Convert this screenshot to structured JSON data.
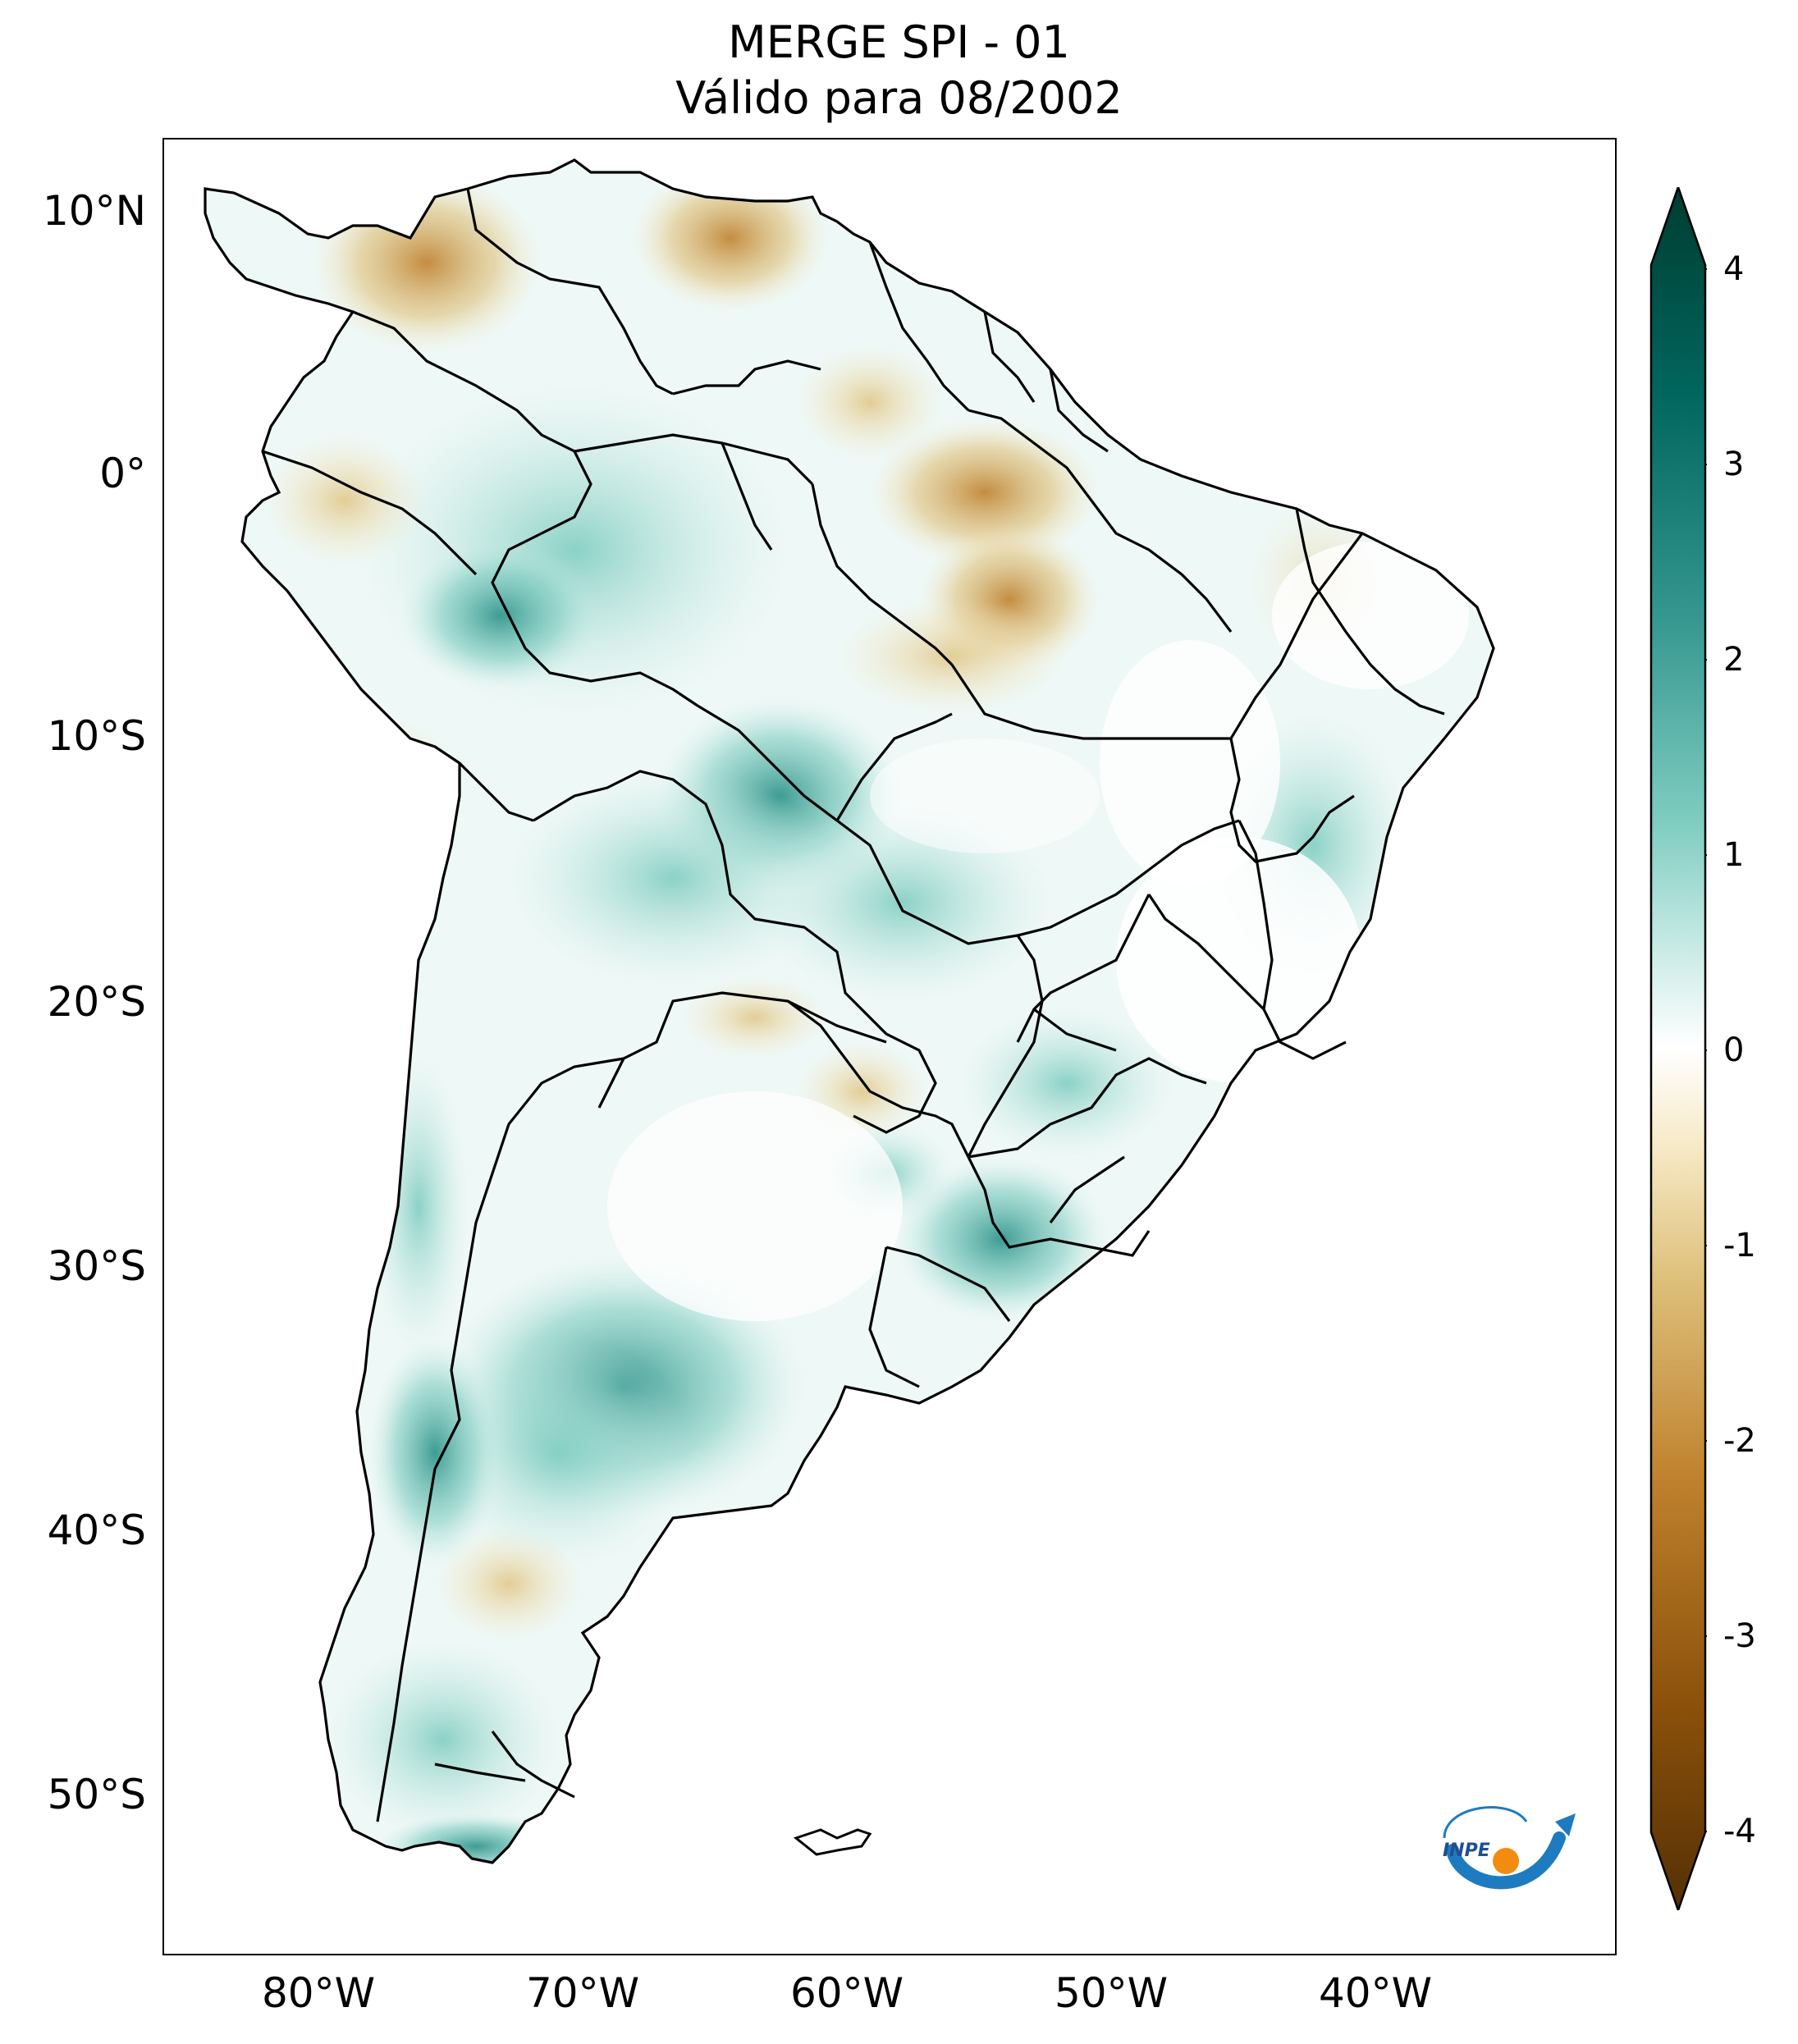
{
  "title": {
    "line1": "MERGE   SPI - 01",
    "line2": "Válido para 08/2002"
  },
  "axes": {
    "lat_labels": [
      "10°N",
      "0°",
      "10°S",
      "20°S",
      "30°S",
      "40°S",
      "50°S"
    ],
    "lon_labels": [
      "80°W",
      "70°W",
      "60°W",
      "50°W",
      "40°W"
    ]
  },
  "colorbar": {
    "min": -4,
    "max": 4,
    "labels": [
      "4",
      "3",
      "2",
      "1",
      "0",
      "-1",
      "-2",
      "-3",
      "-4"
    ],
    "colors": {
      "dry_extreme": "#543005",
      "dry_strong": "#8c510a",
      "dry_moderate": "#bf812d",
      "dry_light": "#dfc27d",
      "dry_faint": "#f6e8c3",
      "neutral": "#ffffff",
      "wet_faint": "#c7eae5",
      "wet_light": "#80cdc1",
      "wet_moderate": "#35978f",
      "wet_strong": "#01665e",
      "wet_extreme": "#003c30"
    }
  },
  "logo": {
    "text": "INPE"
  }
}
